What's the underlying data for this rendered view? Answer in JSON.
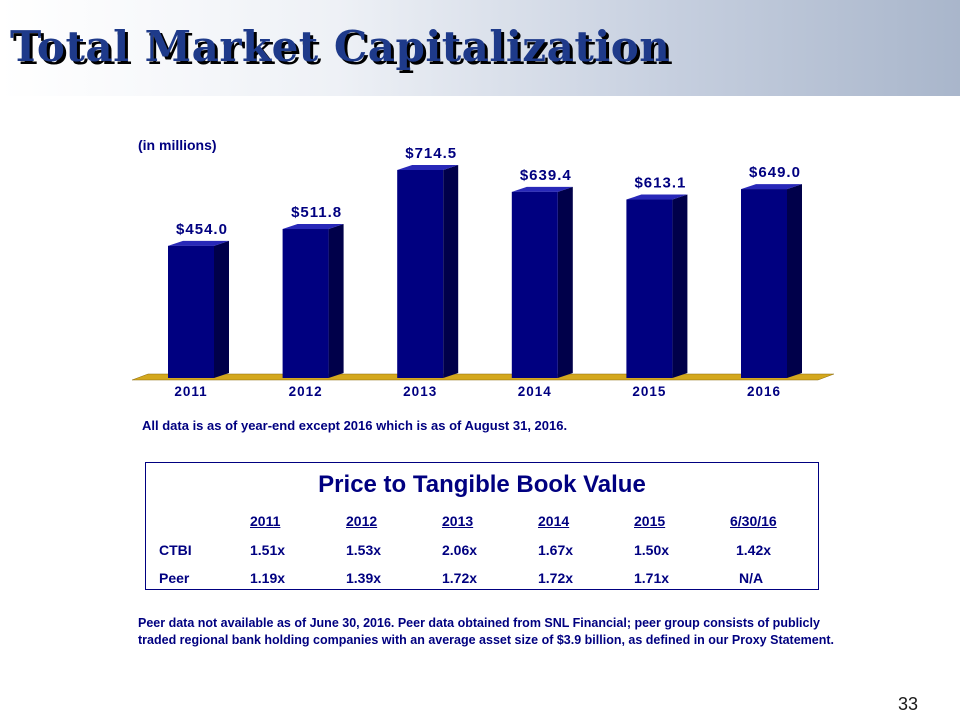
{
  "title": "Total Market Capitalization",
  "units_label": "(in millions)",
  "chart_data": {
    "type": "bar",
    "categories": [
      "2011",
      "2012",
      "2013",
      "2014",
      "2015",
      "2016"
    ],
    "values": [
      454.0,
      511.8,
      714.5,
      639.4,
      613.1,
      649.0
    ],
    "data_labels": [
      "$454.0",
      "$511.8",
      "$714.5",
      "$639.4",
      "$613.1",
      "$649.0"
    ],
    "ylim": [
      0,
      750
    ],
    "grid": false,
    "bar_color": "#000080",
    "floor_color": "#d4a81e"
  },
  "footnote_asof": "All data is as of year-end except 2016 which is as of August 31, 2016.",
  "ptbv": {
    "title": "Price to Tangible Book Value",
    "columns": [
      "2011",
      "2012",
      "2013",
      "2014",
      "2015",
      "6/30/16"
    ],
    "rows": [
      {
        "label": "CTBI",
        "values": [
          "1.51x",
          "1.53x",
          "2.06x",
          "1.67x",
          "1.50x",
          "1.42x"
        ]
      },
      {
        "label": "Peer",
        "values": [
          "1.19x",
          "1.39x",
          "1.72x",
          "1.72x",
          "1.71x",
          "N/A"
        ]
      }
    ]
  },
  "footnote_peer": "Peer data not available as of June 30, 2016.  Peer data obtained from SNL Financial; peer group consists of publicly traded regional bank holding companies with an average asset size of $3.9 billion, as defined in our Proxy Statement.",
  "page_number": "33"
}
